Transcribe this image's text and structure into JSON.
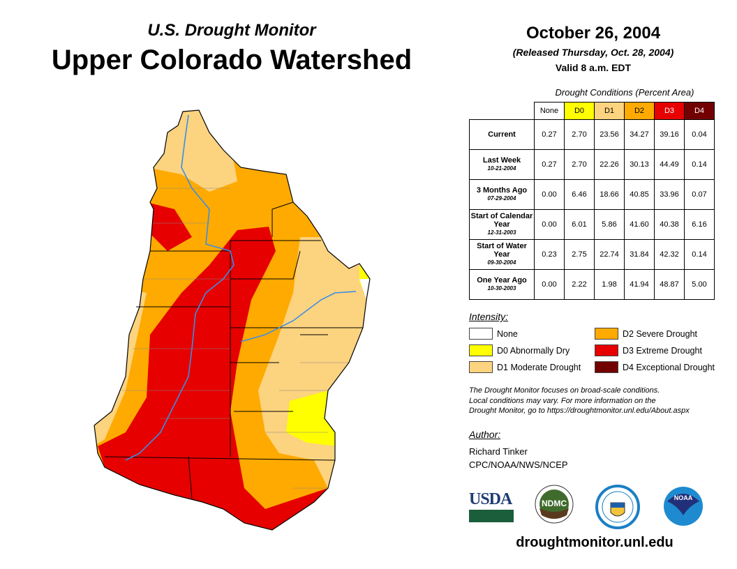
{
  "header": {
    "subtitle": "U.S. Drought Monitor",
    "title": "Upper Colorado Watershed"
  },
  "date": {
    "main": "October 26, 2004",
    "released": "(Released Thursday, Oct. 28, 2004)",
    "valid": "Valid 8 a.m. EDT"
  },
  "table": {
    "caption": "Drought Conditions (Percent Area)",
    "columns": [
      "None",
      "D0",
      "D1",
      "D2",
      "D3",
      "D4"
    ],
    "column_colors": [
      "#ffffff",
      "#ffff00",
      "#fcd37f",
      "#ffaa00",
      "#e60000",
      "#730000"
    ],
    "rows": [
      {
        "label": "Current",
        "date": "",
        "values": [
          "0.27",
          "2.70",
          "23.56",
          "34.27",
          "39.16",
          "0.04"
        ]
      },
      {
        "label": "Last Week",
        "date": "10-21-2004",
        "values": [
          "0.27",
          "2.70",
          "22.26",
          "30.13",
          "44.49",
          "0.14"
        ]
      },
      {
        "label": "3 Months Ago",
        "date": "07-29-2004",
        "values": [
          "0.00",
          "6.46",
          "18.66",
          "40.85",
          "33.96",
          "0.07"
        ]
      },
      {
        "label": "Start of Calendar Year",
        "date": "12-31-2003",
        "values": [
          "0.00",
          "6.01",
          "5.86",
          "41.60",
          "40.38",
          "6.16"
        ]
      },
      {
        "label": "Start of Water Year",
        "date": "09-30-2004",
        "values": [
          "0.23",
          "2.75",
          "22.74",
          "31.84",
          "42.32",
          "0.14"
        ]
      },
      {
        "label": "One Year Ago",
        "date": "10-30-2003",
        "values": [
          "0.00",
          "2.22",
          "1.98",
          "41.94",
          "48.87",
          "5.00"
        ]
      }
    ]
  },
  "legend": {
    "title": "Intensity:",
    "items": [
      {
        "label": "None",
        "color": "#ffffff"
      },
      {
        "label": "D0 Abnormally Dry",
        "color": "#ffff00"
      },
      {
        "label": "D1 Moderate Drought",
        "color": "#fcd37f"
      },
      {
        "label": "D2 Severe Drought",
        "color": "#ffaa00"
      },
      {
        "label": "D3 Extreme Drought",
        "color": "#e60000"
      },
      {
        "label": "D4 Exceptional Drought",
        "color": "#730000"
      }
    ]
  },
  "note": [
    "The Drought Monitor focuses on broad-scale conditions.",
    "Local conditions may vary. For more information on the",
    "Drought Monitor, go to https://droughtmonitor.unl.edu/About.aspx"
  ],
  "author": {
    "title": "Author:",
    "name": "Richard Tinker",
    "org": "CPC/NOAA/NWS/NCEP"
  },
  "logos": {
    "usda": "USDA",
    "ndmc": "NDMC",
    "noaa": "NOAA"
  },
  "site": "droughtmonitor.unl.edu"
}
